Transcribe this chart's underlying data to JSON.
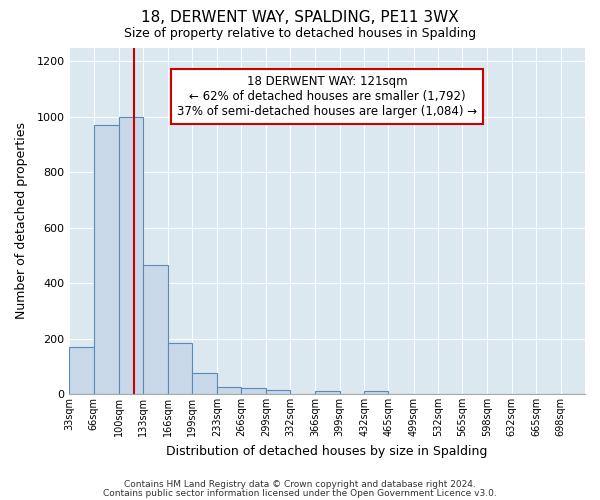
{
  "title": "18, DERWENT WAY, SPALDING, PE11 3WX",
  "subtitle": "Size of property relative to detached houses in Spalding",
  "xlabel": "Distribution of detached houses by size in Spalding",
  "ylabel": "Number of detached properties",
  "bin_labels": [
    "33sqm",
    "66sqm",
    "100sqm",
    "133sqm",
    "166sqm",
    "199sqm",
    "233sqm",
    "266sqm",
    "299sqm",
    "332sqm",
    "366sqm",
    "399sqm",
    "432sqm",
    "465sqm",
    "499sqm",
    "532sqm",
    "565sqm",
    "598sqm",
    "632sqm",
    "665sqm",
    "698sqm"
  ],
  "bin_edges": [
    33,
    66,
    100,
    133,
    166,
    199,
    233,
    266,
    299,
    332,
    366,
    399,
    432,
    465,
    499,
    532,
    565,
    598,
    632,
    665,
    698,
    731
  ],
  "bar_heights": [
    170,
    970,
    1000,
    465,
    185,
    75,
    25,
    20,
    15,
    0,
    10,
    0,
    10,
    0,
    0,
    0,
    0,
    0,
    0,
    0,
    0
  ],
  "bar_color": "#c8d8e8",
  "bar_edge_color": "#5a8ab5",
  "property_line_x": 121,
  "property_line_color": "#cc0000",
  "annotation_text_line1": "18 DERWENT WAY: 121sqm",
  "annotation_text_line2": "← 62% of detached houses are smaller (1,792)",
  "annotation_text_line3": "37% of semi-detached houses are larger (1,084) →",
  "annotation_box_color": "#ffffff",
  "annotation_border_color": "#cc0000",
  "ylim": [
    0,
    1250
  ],
  "yticks": [
    0,
    200,
    400,
    600,
    800,
    1000,
    1200
  ],
  "fig_bg_color": "#ffffff",
  "plot_bg_color": "#dce8f0",
  "footer_line1": "Contains HM Land Registry data © Crown copyright and database right 2024.",
  "footer_line2": "Contains public sector information licensed under the Open Government Licence v3.0."
}
